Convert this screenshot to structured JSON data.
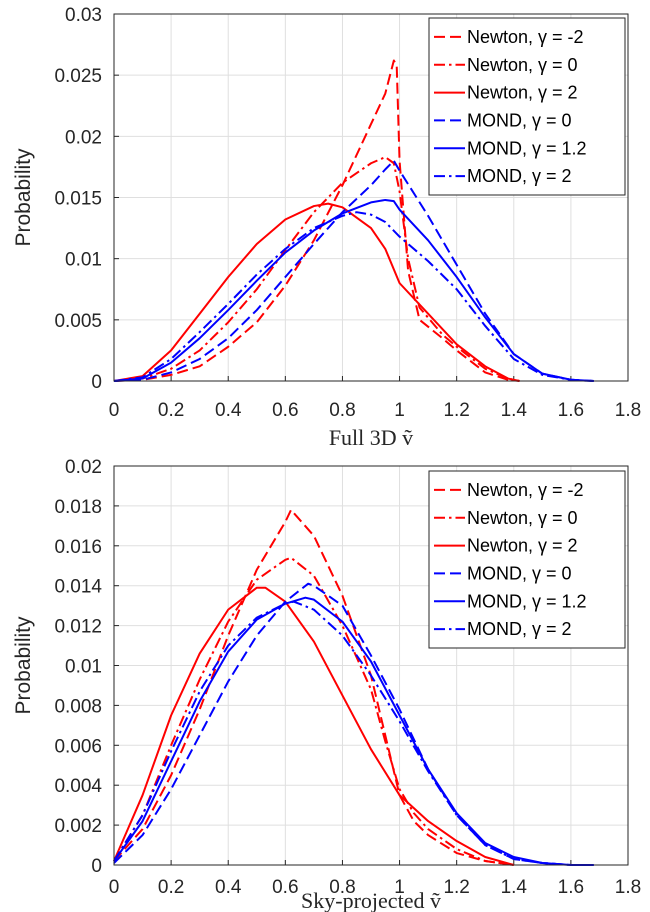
{
  "chart_data": [
    {
      "type": "line",
      "title": "",
      "xlabel": "Full 3D ṽ",
      "ylabel": "Probability",
      "xlim": [
        0,
        1.8
      ],
      "ylim": [
        0,
        0.03
      ],
      "xticks": [
        "0",
        "0.2",
        "0.4",
        "0.6",
        "0.8",
        "1",
        "1.2",
        "1.4",
        "1.6",
        "1.8"
      ],
      "yticks": [
        "0",
        "0.005",
        "0.01",
        "0.015",
        "0.02",
        "0.025",
        "0.03"
      ],
      "grid": true,
      "legend_position": "top-right",
      "series": [
        {
          "name": "Newton, γ = -2",
          "color": "#ff0000",
          "style": "dashed",
          "points": [
            [
              0,
              0
            ],
            [
              0.1,
              0.0001
            ],
            [
              0.2,
              0.0005
            ],
            [
              0.3,
              0.0012
            ],
            [
              0.4,
              0.0028
            ],
            [
              0.5,
              0.0048
            ],
            [
              0.6,
              0.0078
            ],
            [
              0.7,
              0.0115
            ],
            [
              0.8,
              0.016
            ],
            [
              0.9,
              0.021
            ],
            [
              0.95,
              0.0235
            ],
            [
              0.98,
              0.0262
            ],
            [
              0.99,
              0.0258
            ],
            [
              1.0,
              0.018
            ],
            [
              1.03,
              0.009
            ],
            [
              1.07,
              0.005
            ],
            [
              1.15,
              0.0035
            ],
            [
              1.2,
              0.0025
            ],
            [
              1.3,
              0.0007
            ],
            [
              1.38,
              0.0001
            ],
            [
              1.42,
              0
            ]
          ]
        },
        {
          "name": "Newton, γ = 0",
          "color": "#ff0000",
          "style": "dashdot",
          "points": [
            [
              0,
              0
            ],
            [
              0.1,
              0.0002
            ],
            [
              0.2,
              0.001
            ],
            [
              0.3,
              0.0025
            ],
            [
              0.4,
              0.0048
            ],
            [
              0.5,
              0.0075
            ],
            [
              0.6,
              0.0107
            ],
            [
              0.7,
              0.0138
            ],
            [
              0.8,
              0.0162
            ],
            [
              0.9,
              0.0178
            ],
            [
              0.95,
              0.0183
            ],
            [
              0.98,
              0.0178
            ],
            [
              1.0,
              0.0155
            ],
            [
              1.03,
              0.01
            ],
            [
              1.07,
              0.006
            ],
            [
              1.15,
              0.0038
            ],
            [
              1.2,
              0.0028
            ],
            [
              1.3,
              0.001
            ],
            [
              1.38,
              0.0002
            ],
            [
              1.42,
              0
            ]
          ]
        },
        {
          "name": "Newton, γ = 2",
          "color": "#ff0000",
          "style": "solid",
          "points": [
            [
              0,
              0
            ],
            [
              0.1,
              0.0004
            ],
            [
              0.2,
              0.0025
            ],
            [
              0.3,
              0.0055
            ],
            [
              0.4,
              0.0085
            ],
            [
              0.5,
              0.0112
            ],
            [
              0.6,
              0.0132
            ],
            [
              0.7,
              0.0143
            ],
            [
              0.75,
              0.0145
            ],
            [
              0.8,
              0.0142
            ],
            [
              0.9,
              0.0125
            ],
            [
              0.95,
              0.0108
            ],
            [
              1.0,
              0.008
            ],
            [
              1.1,
              0.0055
            ],
            [
              1.2,
              0.003
            ],
            [
              1.3,
              0.0012
            ],
            [
              1.38,
              0.0002
            ],
            [
              1.42,
              0
            ]
          ]
        },
        {
          "name": "MOND, γ = 0",
          "color": "#0000ff",
          "style": "dashed",
          "points": [
            [
              0,
              0
            ],
            [
              0.1,
              0.0001
            ],
            [
              0.2,
              0.0007
            ],
            [
              0.3,
              0.0018
            ],
            [
              0.4,
              0.0035
            ],
            [
              0.5,
              0.0058
            ],
            [
              0.6,
              0.0085
            ],
            [
              0.7,
              0.0112
            ],
            [
              0.8,
              0.0138
            ],
            [
              0.9,
              0.016
            ],
            [
              0.95,
              0.0173
            ],
            [
              0.98,
              0.018
            ],
            [
              1.0,
              0.0172
            ],
            [
              1.1,
              0.0135
            ],
            [
              1.2,
              0.0095
            ],
            [
              1.3,
              0.0055
            ],
            [
              1.4,
              0.0022
            ],
            [
              1.5,
              0.0006
            ],
            [
              1.6,
              0.0001
            ],
            [
              1.68,
              0
            ]
          ]
        },
        {
          "name": "MOND, γ = 1.2",
          "color": "#0000ff",
          "style": "solid",
          "points": [
            [
              0,
              0
            ],
            [
              0.1,
              0.0002
            ],
            [
              0.2,
              0.0015
            ],
            [
              0.3,
              0.0035
            ],
            [
              0.4,
              0.0058
            ],
            [
              0.5,
              0.0082
            ],
            [
              0.6,
              0.0105
            ],
            [
              0.7,
              0.0123
            ],
            [
              0.8,
              0.0137
            ],
            [
              0.9,
              0.0146
            ],
            [
              0.95,
              0.0148
            ],
            [
              0.98,
              0.0147
            ],
            [
              1.0,
              0.014
            ],
            [
              1.1,
              0.0115
            ],
            [
              1.2,
              0.0085
            ],
            [
              1.3,
              0.0052
            ],
            [
              1.4,
              0.0022
            ],
            [
              1.5,
              0.0006
            ],
            [
              1.6,
              0.0001
            ],
            [
              1.68,
              0
            ]
          ]
        },
        {
          "name": "MOND, γ = 2",
          "color": "#0000ff",
          "style": "dashdot",
          "points": [
            [
              0,
              0
            ],
            [
              0.1,
              0.0003
            ],
            [
              0.2,
              0.0018
            ],
            [
              0.3,
              0.004
            ],
            [
              0.4,
              0.0063
            ],
            [
              0.5,
              0.0087
            ],
            [
              0.6,
              0.0108
            ],
            [
              0.7,
              0.0125
            ],
            [
              0.8,
              0.0135
            ],
            [
              0.85,
              0.0138
            ],
            [
              0.9,
              0.0136
            ],
            [
              0.95,
              0.013
            ],
            [
              1.0,
              0.0118
            ],
            [
              1.1,
              0.0098
            ],
            [
              1.2,
              0.0075
            ],
            [
              1.3,
              0.0045
            ],
            [
              1.4,
              0.0018
            ],
            [
              1.5,
              0.0005
            ],
            [
              1.6,
              0.0001
            ],
            [
              1.68,
              0
            ]
          ]
        }
      ]
    },
    {
      "type": "line",
      "title": "",
      "xlabel": "Sky-projected ṽ",
      "ylabel": "Probability",
      "xlim": [
        0,
        1.8
      ],
      "ylim": [
        0,
        0.02
      ],
      "xticks": [
        "0",
        "0.2",
        "0.4",
        "0.6",
        "0.8",
        "1",
        "1.2",
        "1.4",
        "1.6",
        "1.8"
      ],
      "yticks": [
        "0",
        "0.002",
        "0.004",
        "0.006",
        "0.008",
        "0.01",
        "0.012",
        "0.014",
        "0.016",
        "0.018",
        "0.02"
      ],
      "grid": true,
      "legend_position": "top-right",
      "series": [
        {
          "name": "Newton, γ = -2",
          "color": "#ff0000",
          "style": "dashed",
          "points": [
            [
              0,
              0.0002
            ],
            [
              0.1,
              0.0018
            ],
            [
              0.2,
              0.0045
            ],
            [
              0.3,
              0.0078
            ],
            [
              0.4,
              0.0115
            ],
            [
              0.5,
              0.0148
            ],
            [
              0.6,
              0.0172
            ],
            [
              0.62,
              0.0178
            ],
            [
              0.7,
              0.0165
            ],
            [
              0.8,
              0.0135
            ],
            [
              0.9,
              0.0095
            ],
            [
              0.95,
              0.0065
            ],
            [
              1.0,
              0.0035
            ],
            [
              1.05,
              0.0022
            ],
            [
              1.1,
              0.0015
            ],
            [
              1.2,
              0.0006
            ],
            [
              1.3,
              0.0002
            ],
            [
              1.4,
              0
            ]
          ]
        },
        {
          "name": "Newton, γ = 0",
          "color": "#ff0000",
          "style": "dashdot",
          "points": [
            [
              0,
              0.0002
            ],
            [
              0.1,
              0.0025
            ],
            [
              0.2,
              0.006
            ],
            [
              0.3,
              0.0093
            ],
            [
              0.4,
              0.0122
            ],
            [
              0.5,
              0.0143
            ],
            [
              0.6,
              0.0153
            ],
            [
              0.62,
              0.0154
            ],
            [
              0.7,
              0.0145
            ],
            [
              0.8,
              0.012
            ],
            [
              0.9,
              0.0088
            ],
            [
              0.95,
              0.0062
            ],
            [
              1.0,
              0.0038
            ],
            [
              1.05,
              0.0026
            ],
            [
              1.1,
              0.0018
            ],
            [
              1.2,
              0.0008
            ],
            [
              1.3,
              0.0002
            ],
            [
              1.4,
              0
            ]
          ]
        },
        {
          "name": "Newton, γ = 2",
          "color": "#ff0000",
          "style": "solid",
          "points": [
            [
              0,
              0.0002
            ],
            [
              0.1,
              0.0035
            ],
            [
              0.2,
              0.0075
            ],
            [
              0.3,
              0.0106
            ],
            [
              0.4,
              0.0128
            ],
            [
              0.5,
              0.0139
            ],
            [
              0.53,
              0.0139
            ],
            [
              0.6,
              0.0132
            ],
            [
              0.7,
              0.0112
            ],
            [
              0.8,
              0.0085
            ],
            [
              0.9,
              0.0058
            ],
            [
              1.0,
              0.0035
            ],
            [
              1.1,
              0.0022
            ],
            [
              1.2,
              0.0012
            ],
            [
              1.3,
              0.0004
            ],
            [
              1.4,
              0
            ]
          ]
        },
        {
          "name": "MOND, γ = 0",
          "color": "#0000ff",
          "style": "dashed",
          "points": [
            [
              0,
              0.0001
            ],
            [
              0.1,
              0.0015
            ],
            [
              0.2,
              0.0038
            ],
            [
              0.3,
              0.0065
            ],
            [
              0.4,
              0.0092
            ],
            [
              0.5,
              0.0115
            ],
            [
              0.6,
              0.0132
            ],
            [
              0.68,
              0.0141
            ],
            [
              0.7,
              0.014
            ],
            [
              0.8,
              0.013
            ],
            [
              0.9,
              0.0105
            ],
            [
              1.0,
              0.0078
            ],
            [
              1.1,
              0.0048
            ],
            [
              1.2,
              0.0025
            ],
            [
              1.3,
              0.001
            ],
            [
              1.4,
              0.0003
            ],
            [
              1.5,
              0.0001
            ],
            [
              1.6,
              0
            ],
            [
              1.68,
              0
            ]
          ]
        },
        {
          "name": "MOND, γ = 1.2",
          "color": "#0000ff",
          "style": "solid",
          "points": [
            [
              0,
              0.0002
            ],
            [
              0.1,
              0.0022
            ],
            [
              0.2,
              0.0052
            ],
            [
              0.3,
              0.0082
            ],
            [
              0.4,
              0.0107
            ],
            [
              0.5,
              0.0123
            ],
            [
              0.6,
              0.0131
            ],
            [
              0.67,
              0.0134
            ],
            [
              0.7,
              0.0133
            ],
            [
              0.8,
              0.0122
            ],
            [
              0.9,
              0.0102
            ],
            [
              1.0,
              0.0075
            ],
            [
              1.1,
              0.0048
            ],
            [
              1.2,
              0.0026
            ],
            [
              1.3,
              0.0011
            ],
            [
              1.4,
              0.0004
            ],
            [
              1.5,
              0.0001
            ],
            [
              1.6,
              0
            ],
            [
              1.68,
              0
            ]
          ]
        },
        {
          "name": "MOND, γ = 2",
          "color": "#0000ff",
          "style": "dashdot",
          "points": [
            [
              0,
              0.0002
            ],
            [
              0.1,
              0.0025
            ],
            [
              0.2,
              0.0057
            ],
            [
              0.3,
              0.0087
            ],
            [
              0.4,
              0.011
            ],
            [
              0.5,
              0.0124
            ],
            [
              0.6,
              0.0131
            ],
            [
              0.63,
              0.0132
            ],
            [
              0.7,
              0.0128
            ],
            [
              0.8,
              0.0115
            ],
            [
              0.9,
              0.0095
            ],
            [
              1.0,
              0.0072
            ],
            [
              1.1,
              0.0047
            ],
            [
              1.2,
              0.0025
            ],
            [
              1.3,
              0.001
            ],
            [
              1.4,
              0.0003
            ],
            [
              1.5,
              0.0001
            ],
            [
              1.6,
              0
            ],
            [
              1.68,
              0
            ]
          ]
        }
      ]
    }
  ]
}
